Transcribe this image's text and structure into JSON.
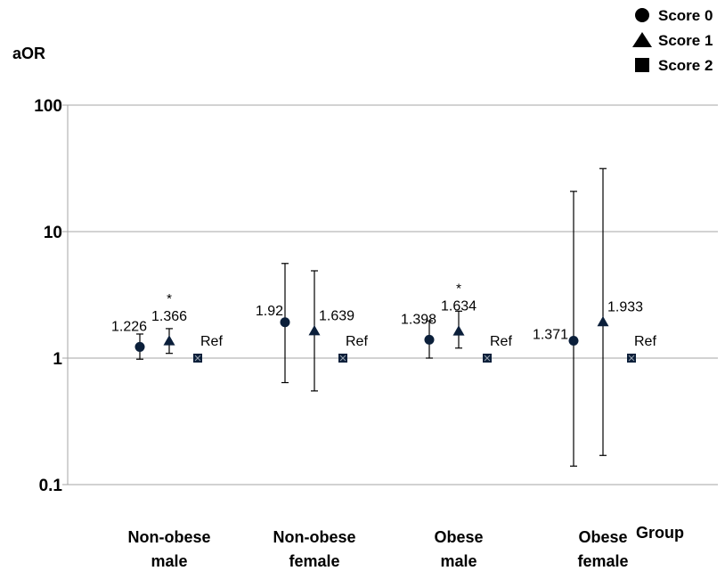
{
  "chart_data": {
    "type": "scatter",
    "scale": "log",
    "ylabel": "aOR",
    "xlabel": "Group",
    "ylim": [
      0.1,
      100
    ],
    "yticks": [
      {
        "value": 0.1,
        "label": "0.1"
      },
      {
        "value": 1,
        "label": "1"
      },
      {
        "value": 10,
        "label": "10"
      },
      {
        "value": 100,
        "label": "100"
      }
    ],
    "grid": true,
    "legend_position": "top-right",
    "categories": [
      {
        "lines": [
          "Non-obese",
          "male"
        ]
      },
      {
        "lines": [
          "Non-obese",
          "female"
        ]
      },
      {
        "lines": [
          "Obese",
          "male"
        ]
      },
      {
        "lines": [
          "Obese",
          "female"
        ]
      }
    ],
    "series": [
      {
        "name": "Score 0",
        "marker": "circle",
        "color": "#0b1f3a",
        "points": [
          {
            "value": 1.226,
            "lower": 0.98,
            "upper": 1.55,
            "label": "1.226",
            "star": false
          },
          {
            "value": 1.92,
            "lower": 0.64,
            "upper": 5.6,
            "label": "1.92",
            "star": false
          },
          {
            "value": 1.398,
            "lower": 1.0,
            "upper": 1.97,
            "label": "1.398",
            "star": false
          },
          {
            "value": 1.371,
            "lower": 0.14,
            "upper": 20.8,
            "label": "1.371",
            "star": false
          }
        ]
      },
      {
        "name": "Score 1",
        "marker": "triangle",
        "color": "#0b1f3a",
        "points": [
          {
            "value": 1.366,
            "lower": 1.09,
            "upper": 1.71,
            "label": "1.366",
            "star": true
          },
          {
            "value": 1.639,
            "lower": 0.55,
            "upper": 4.9,
            "label": "1.639",
            "star": false
          },
          {
            "value": 1.634,
            "lower": 1.2,
            "upper": 2.35,
            "label": "1.634",
            "star": true
          },
          {
            "value": 1.933,
            "lower": 0.17,
            "upper": 31.5,
            "label": "1.933",
            "star": false
          }
        ]
      },
      {
        "name": "Score 2",
        "marker": "square",
        "color": "#0b1f3a",
        "points": [
          {
            "value": 1,
            "label": "Ref",
            "star": false
          },
          {
            "value": 1,
            "label": "Ref",
            "star": false
          },
          {
            "value": 1,
            "label": "Ref",
            "star": false
          },
          {
            "value": 1,
            "label": "Ref",
            "star": false
          }
        ]
      }
    ],
    "significance_marker": "*"
  }
}
